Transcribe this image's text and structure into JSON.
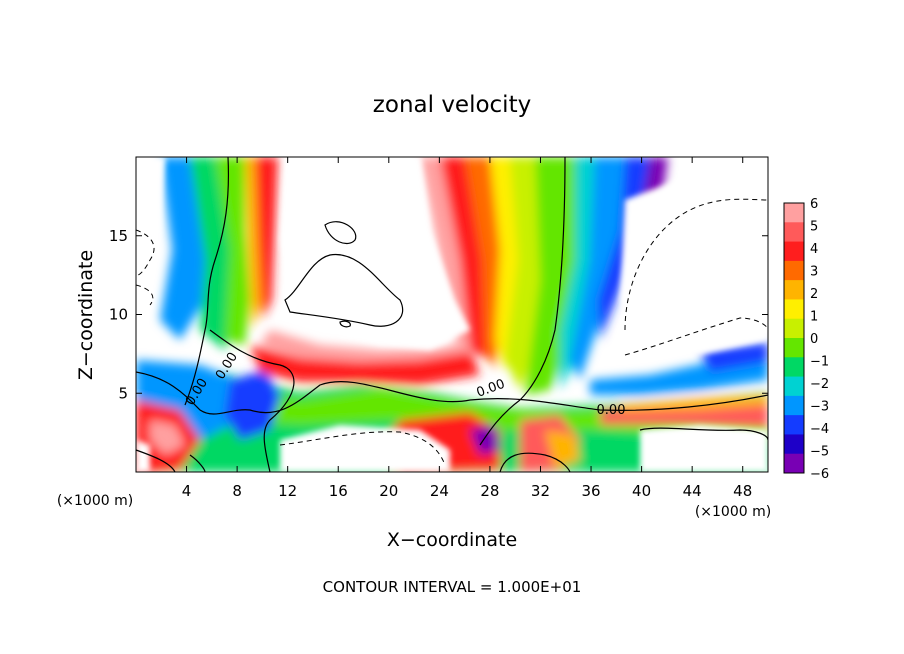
{
  "chart_data": {
    "type": "heatmap",
    "title": "zonal velocity",
    "xlabel": "X−coordinate",
    "ylabel": "Z−coordinate",
    "x_unit_label": "(×1000 m)",
    "y_unit_label": "(×1000 m)",
    "xlim": [
      0,
      50
    ],
    "ylim": [
      0,
      20
    ],
    "x_ticks": [
      4,
      8,
      12,
      16,
      20,
      24,
      28,
      32,
      36,
      40,
      44,
      48
    ],
    "y_ticks": [
      5,
      10,
      15
    ],
    "colorbar": {
      "ticks": [
        6,
        5,
        4,
        3,
        2,
        1,
        0,
        -1,
        -2,
        -3,
        -4,
        -5,
        -6
      ],
      "tick_labels": [
        "6",
        "5",
        "4",
        "3",
        "2",
        "1",
        "0",
        "−1",
        "−2",
        "−3",
        "−4",
        "−5",
        "−6"
      ],
      "colors": [
        "#ffa0a0",
        "#ff5a5a",
        "#ff1e1e",
        "#ff6a00",
        "#ffb400",
        "#ffef00",
        "#c8f000",
        "#64e600",
        "#00d864",
        "#00d2d2",
        "#0096ff",
        "#143cff",
        "#1e00c8",
        "#7800b4"
      ]
    },
    "contour_labels": [
      {
        "text": "0.00",
        "x": 4.7,
        "z": 5.5
      },
      {
        "text": "0.00",
        "x": 7.0,
        "z": 6.6
      },
      {
        "text": "0.00",
        "x": 28.3,
        "z": 5.2
      },
      {
        "text": "0.00",
        "x": 37.5,
        "z": 4.1
      }
    ],
    "footer": "CONTOUR INTERVAL = 1.000E+01"
  }
}
